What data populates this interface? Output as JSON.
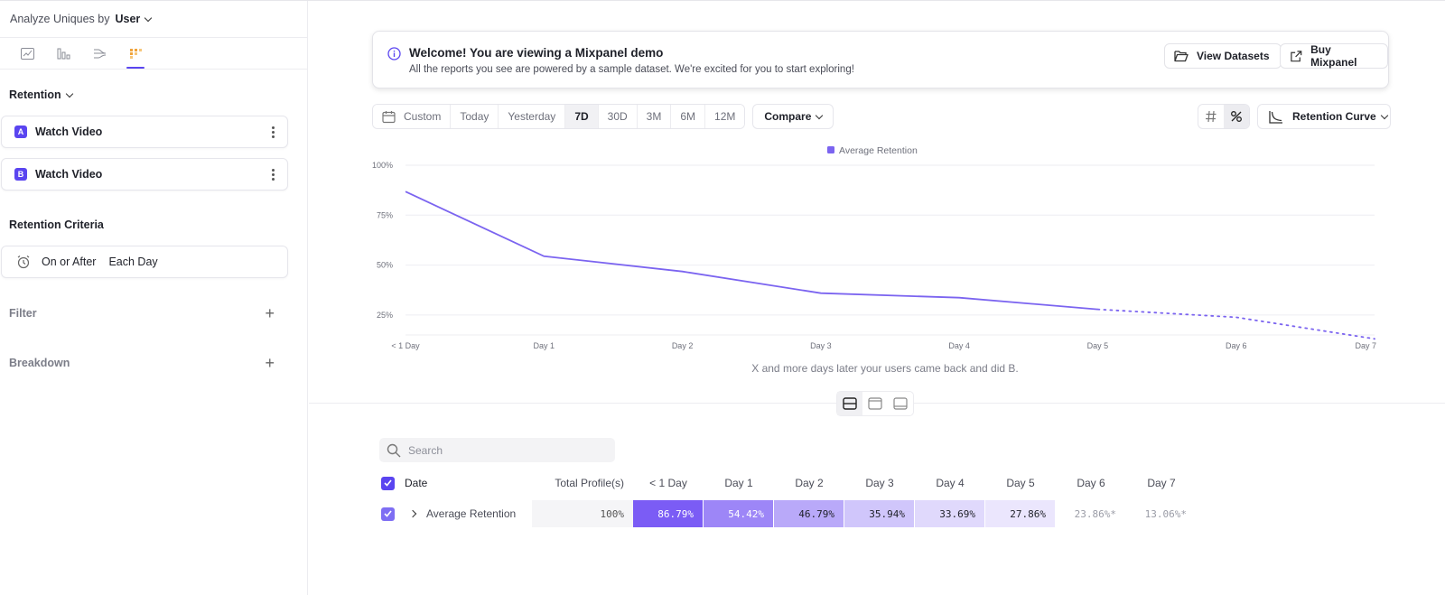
{
  "sidebar": {
    "analyze_label": "Analyze Uniques by",
    "analyze_value": "User",
    "section_retention": "Retention",
    "events": [
      {
        "badge": "A",
        "name": "Watch Video"
      },
      {
        "badge": "B",
        "name": "Watch Video"
      }
    ],
    "criteria_title": "Retention Criteria",
    "criteria_mode": "On or After",
    "criteria_unit": "Each Day",
    "filter_label": "Filter",
    "breakdown_label": "Breakdown"
  },
  "banner": {
    "title": "Welcome! You are viewing a Mixpanel demo",
    "subtitle": "All the reports you see are powered by a sample dataset. We're excited for you to start exploring!",
    "datasets_label": "View Datasets",
    "buy_label": "Buy Mixpanel"
  },
  "toolbar": {
    "custom_label": "Custom",
    "ranges": [
      "Today",
      "Yesterday",
      "7D",
      "30D",
      "3M",
      "6M",
      "12M"
    ],
    "active_range": "7D",
    "compare_label": "Compare",
    "curve_label": "Retention Curve"
  },
  "chart_data": {
    "type": "line",
    "legend": "Average Retention",
    "categories": [
      "< 1 Day",
      "Day 1",
      "Day 2",
      "Day 3",
      "Day 4",
      "Day 5",
      "Day 6",
      "Day 7"
    ],
    "values": [
      86.79,
      54.42,
      46.79,
      35.94,
      33.69,
      27.86,
      23.86,
      13.06
    ],
    "projected_from_index": 5,
    "y_ticks": [
      "100%",
      "75%",
      "50%",
      "25%"
    ],
    "ylim": [
      15,
      100
    ],
    "xlabel": "X and more days later your users came back and did B.",
    "colors": {
      "line": "#7b64f0",
      "grid": "#eeeef2"
    }
  },
  "table": {
    "search_placeholder": "Search",
    "headers": {
      "date": "Date",
      "total": "Total Profile(s)",
      "days": [
        "< 1 Day",
        "Day 1",
        "Day 2",
        "Day 3",
        "Day 4",
        "Day 5",
        "Day 6",
        "Day 7"
      ]
    },
    "row": {
      "label": "Average Retention",
      "total": "100%",
      "cells": [
        "86.79%",
        "54.42%",
        "46.79%",
        "35.94%",
        "33.69%",
        "27.86%",
        "23.86%*",
        "13.06%*"
      ],
      "cell_colors": [
        "#7b5cf5",
        "#9d86f7",
        "#b9a9f9",
        "#d0c6fb",
        "#e0d9fc",
        "#ebe6fd",
        "#ffffff",
        "#ffffff"
      ],
      "cell_text_colors": [
        "#ffffff",
        "#ffffff",
        "#1f2129",
        "#1f2129",
        "#1f2129",
        "#1f2129",
        "#9a9ca6",
        "#9a9ca6"
      ]
    }
  }
}
